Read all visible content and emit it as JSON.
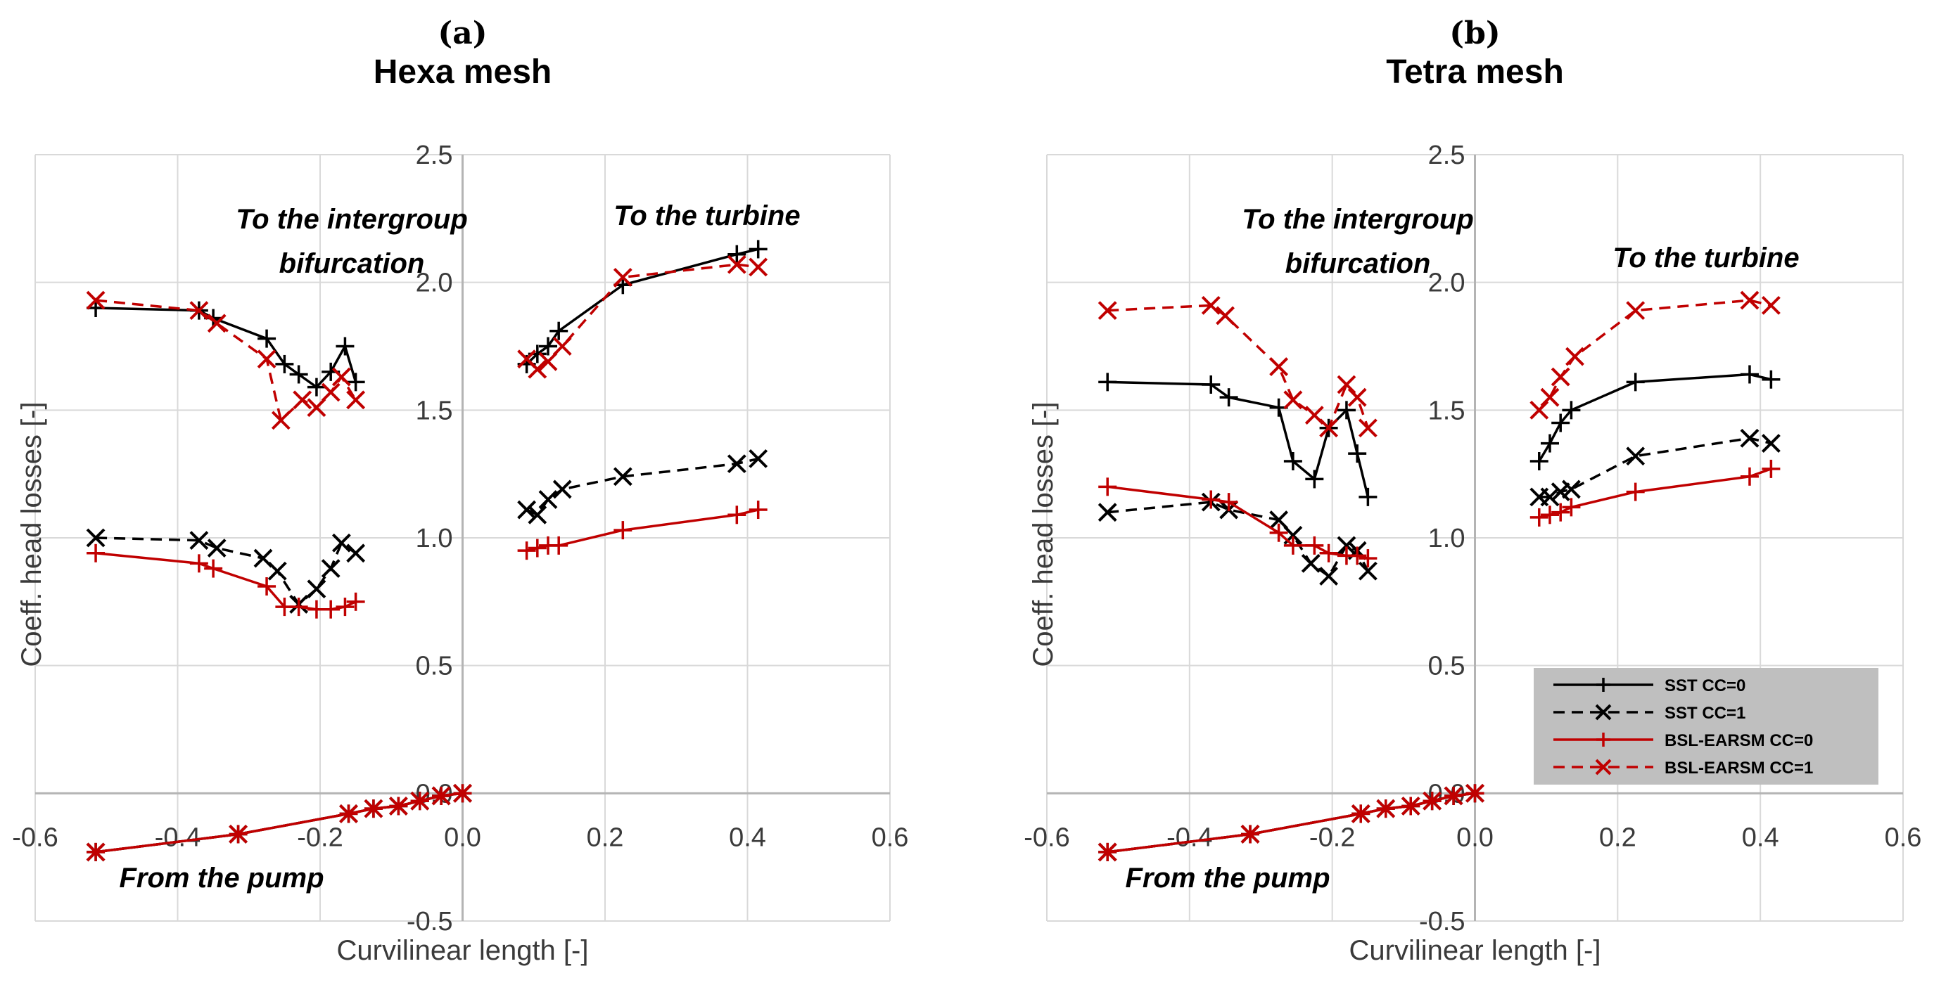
{
  "chart_data": [
    {
      "type": "line",
      "panel_label": "(a)",
      "title": "Hexa mesh",
      "xlabel": "Curvilinear length [-]",
      "ylabel": "Coeff. head losses [-]",
      "xlim": [
        -0.6,
        0.6
      ],
      "ylim": [
        -0.5,
        2.5
      ],
      "x_ticks": [
        "-0.6",
        "-0.4",
        "-0.2",
        "0.0",
        "0.2",
        "0.4",
        "0.6"
      ],
      "y_ticks": [
        "-0.5",
        "0.0",
        "0.5",
        "1.0",
        "1.5",
        "2.0",
        "2.5"
      ],
      "grid": true,
      "annotations": {
        "intergroup_line1": "To the intergroup",
        "intergroup_line2": "bifurcation",
        "turbine": "To the turbine",
        "pump": "From the pump"
      },
      "series": [
        {
          "name": "SST CC=0",
          "color": "#000000",
          "dash": false,
          "marker": "plus",
          "segments": [
            {
              "x": [
                -0.515,
                -0.37,
                -0.35,
                -0.275,
                -0.25,
                -0.23,
                -0.205,
                -0.185,
                -0.165,
                -0.15
              ],
              "y": [
                1.9,
                1.89,
                1.86,
                1.78,
                1.68,
                1.64,
                1.59,
                1.65,
                1.75,
                1.61
              ]
            },
            {
              "x": [
                0.09,
                0.105,
                0.12,
                0.135,
                0.225,
                0.385,
                0.415
              ],
              "y": [
                1.68,
                1.72,
                1.75,
                1.81,
                1.99,
                2.11,
                2.13
              ]
            },
            {
              "x": [
                -0.515,
                -0.315,
                -0.16,
                -0.125,
                -0.09,
                -0.06,
                -0.03,
                0.0
              ],
              "y": [
                -0.23,
                -0.16,
                -0.08,
                -0.06,
                -0.05,
                -0.03,
                -0.01,
                0.0
              ]
            }
          ]
        },
        {
          "name": "SST CC=1",
          "color": "#000000",
          "dash": true,
          "marker": "x",
          "segments": [
            {
              "x": [
                -0.515,
                -0.37,
                -0.345,
                -0.28,
                -0.26,
                -0.23,
                -0.205,
                -0.185,
                -0.17,
                -0.15
              ],
              "y": [
                1.0,
                0.99,
                0.96,
                0.92,
                0.87,
                0.74,
                0.8,
                0.88,
                0.98,
                0.94
              ]
            },
            {
              "x": [
                0.09,
                0.105,
                0.12,
                0.14,
                0.225,
                0.385,
                0.415
              ],
              "y": [
                1.11,
                1.09,
                1.15,
                1.19,
                1.24,
                1.29,
                1.31
              ]
            },
            {
              "x": [
                -0.515,
                -0.315,
                -0.16,
                -0.125,
                -0.09,
                -0.06,
                -0.03,
                0.0
              ],
              "y": [
                -0.23,
                -0.16,
                -0.08,
                -0.06,
                -0.05,
                -0.03,
                -0.01,
                0.0
              ]
            }
          ]
        },
        {
          "name": "BSL-EARSM CC=0",
          "color": "#c00000",
          "dash": false,
          "marker": "plus",
          "segments": [
            {
              "x": [
                -0.515,
                -0.37,
                -0.35,
                -0.275,
                -0.25,
                -0.23,
                -0.205,
                -0.185,
                -0.165,
                -0.15
              ],
              "y": [
                0.94,
                0.9,
                0.88,
                0.81,
                0.73,
                0.73,
                0.72,
                0.72,
                0.73,
                0.75
              ]
            },
            {
              "x": [
                0.09,
                0.105,
                0.12,
                0.135,
                0.225,
                0.385,
                0.415
              ],
              "y": [
                0.95,
                0.96,
                0.97,
                0.97,
                1.03,
                1.09,
                1.11
              ]
            },
            {
              "x": [
                -0.515,
                -0.315,
                -0.16,
                -0.125,
                -0.09,
                -0.06,
                -0.03,
                0.0
              ],
              "y": [
                -0.23,
                -0.16,
                -0.08,
                -0.06,
                -0.05,
                -0.03,
                -0.01,
                0.0
              ]
            }
          ]
        },
        {
          "name": "BSL-EARSM CC=1",
          "color": "#c00000",
          "dash": true,
          "marker": "x",
          "segments": [
            {
              "x": [
                -0.515,
                -0.37,
                -0.345,
                -0.275,
                -0.255,
                -0.225,
                -0.205,
                -0.185,
                -0.17,
                -0.15
              ],
              "y": [
                1.93,
                1.89,
                1.84,
                1.7,
                1.46,
                1.54,
                1.51,
                1.57,
                1.63,
                1.54
              ]
            },
            {
              "x": [
                0.09,
                0.105,
                0.12,
                0.14,
                0.225,
                0.385,
                0.415
              ],
              "y": [
                1.7,
                1.66,
                1.69,
                1.75,
                2.02,
                2.07,
                2.06
              ]
            },
            {
              "x": [
                -0.515,
                -0.315,
                -0.16,
                -0.125,
                -0.09,
                -0.06,
                -0.03,
                0.0
              ],
              "y": [
                -0.23,
                -0.16,
                -0.08,
                -0.06,
                -0.05,
                -0.03,
                -0.01,
                0.0
              ]
            }
          ]
        }
      ]
    },
    {
      "type": "line",
      "panel_label": "(b)",
      "title": "Tetra mesh",
      "xlabel": "Curvilinear length [-]",
      "ylabel": "Coeff. head losses [-]",
      "xlim": [
        -0.6,
        0.6
      ],
      "ylim": [
        -0.5,
        2.5
      ],
      "x_ticks": [
        "-0.6",
        "-0.4",
        "-0.2",
        "0.0",
        "0.2",
        "0.4",
        "0.6"
      ],
      "y_ticks": [
        "-0.5",
        "0.0",
        "0.5",
        "1.0",
        "1.5",
        "2.0",
        "2.5"
      ],
      "grid": true,
      "legend_position": "bottom-right",
      "annotations": {
        "intergroup_line1": "To the intergroup",
        "intergroup_line2": "bifurcation",
        "turbine": "To the turbine",
        "pump": "From the pump"
      },
      "series": [
        {
          "name": "SST CC=0",
          "color": "#000000",
          "dash": false,
          "marker": "plus",
          "segments": [
            {
              "x": [
                -0.515,
                -0.37,
                -0.345,
                -0.275,
                -0.255,
                -0.225,
                -0.205,
                -0.18,
                -0.165,
                -0.15
              ],
              "y": [
                1.61,
                1.6,
                1.55,
                1.51,
                1.3,
                1.23,
                1.43,
                1.5,
                1.33,
                1.16
              ]
            },
            {
              "x": [
                0.09,
                0.105,
                0.12,
                0.135,
                0.225,
                0.385,
                0.415
              ],
              "y": [
                1.3,
                1.37,
                1.45,
                1.5,
                1.61,
                1.64,
                1.62
              ]
            },
            {
              "x": [
                -0.515,
                -0.315,
                -0.16,
                -0.125,
                -0.09,
                -0.06,
                -0.03,
                0.0
              ],
              "y": [
                -0.23,
                -0.16,
                -0.08,
                -0.06,
                -0.05,
                -0.03,
                -0.01,
                0.0
              ]
            }
          ]
        },
        {
          "name": "SST CC=1",
          "color": "#000000",
          "dash": true,
          "marker": "x",
          "segments": [
            {
              "x": [
                -0.515,
                -0.37,
                -0.345,
                -0.275,
                -0.255,
                -0.23,
                -0.205,
                -0.18,
                -0.165,
                -0.15
              ],
              "y": [
                1.1,
                1.14,
                1.11,
                1.07,
                1.01,
                0.9,
                0.85,
                0.97,
                0.95,
                0.87
              ]
            },
            {
              "x": [
                0.09,
                0.105,
                0.12,
                0.135,
                0.225,
                0.385,
                0.415
              ],
              "y": [
                1.16,
                1.16,
                1.18,
                1.19,
                1.32,
                1.39,
                1.37
              ]
            },
            {
              "x": [
                -0.515,
                -0.315,
                -0.16,
                -0.125,
                -0.09,
                -0.06,
                -0.03,
                0.0
              ],
              "y": [
                -0.23,
                -0.16,
                -0.08,
                -0.06,
                -0.05,
                -0.03,
                -0.01,
                0.0
              ]
            }
          ]
        },
        {
          "name": "BSL-EARSM CC=0",
          "color": "#c00000",
          "dash": false,
          "marker": "plus",
          "segments": [
            {
              "x": [
                -0.515,
                -0.37,
                -0.345,
                -0.275,
                -0.255,
                -0.225,
                -0.205,
                -0.18,
                -0.165,
                -0.15
              ],
              "y": [
                1.2,
                1.15,
                1.14,
                1.02,
                0.97,
                0.97,
                0.94,
                0.93,
                0.93,
                0.92
              ]
            },
            {
              "x": [
                0.09,
                0.105,
                0.12,
                0.135,
                0.225,
                0.385,
                0.415
              ],
              "y": [
                1.08,
                1.09,
                1.1,
                1.12,
                1.18,
                1.24,
                1.27
              ]
            },
            {
              "x": [
                -0.515,
                -0.315,
                -0.16,
                -0.125,
                -0.09,
                -0.06,
                -0.03,
                0.0
              ],
              "y": [
                -0.23,
                -0.16,
                -0.08,
                -0.06,
                -0.05,
                -0.03,
                -0.01,
                0.0
              ]
            }
          ]
        },
        {
          "name": "BSL-EARSM CC=1",
          "color": "#c00000",
          "dash": true,
          "marker": "x",
          "segments": [
            {
              "x": [
                -0.515,
                -0.37,
                -0.35,
                -0.275,
                -0.255,
                -0.225,
                -0.205,
                -0.18,
                -0.165,
                -0.15
              ],
              "y": [
                1.89,
                1.91,
                1.87,
                1.67,
                1.54,
                1.48,
                1.43,
                1.6,
                1.55,
                1.43
              ]
            },
            {
              "x": [
                0.09,
                0.105,
                0.12,
                0.14,
                0.225,
                0.385,
                0.415
              ],
              "y": [
                1.5,
                1.55,
                1.63,
                1.71,
                1.89,
                1.93,
                1.91
              ]
            },
            {
              "x": [
                -0.515,
                -0.315,
                -0.16,
                -0.125,
                -0.09,
                -0.06,
                -0.03,
                0.0
              ],
              "y": [
                -0.23,
                -0.16,
                -0.08,
                -0.06,
                -0.05,
                -0.03,
                -0.01,
                0.0
              ]
            }
          ]
        }
      ]
    }
  ]
}
